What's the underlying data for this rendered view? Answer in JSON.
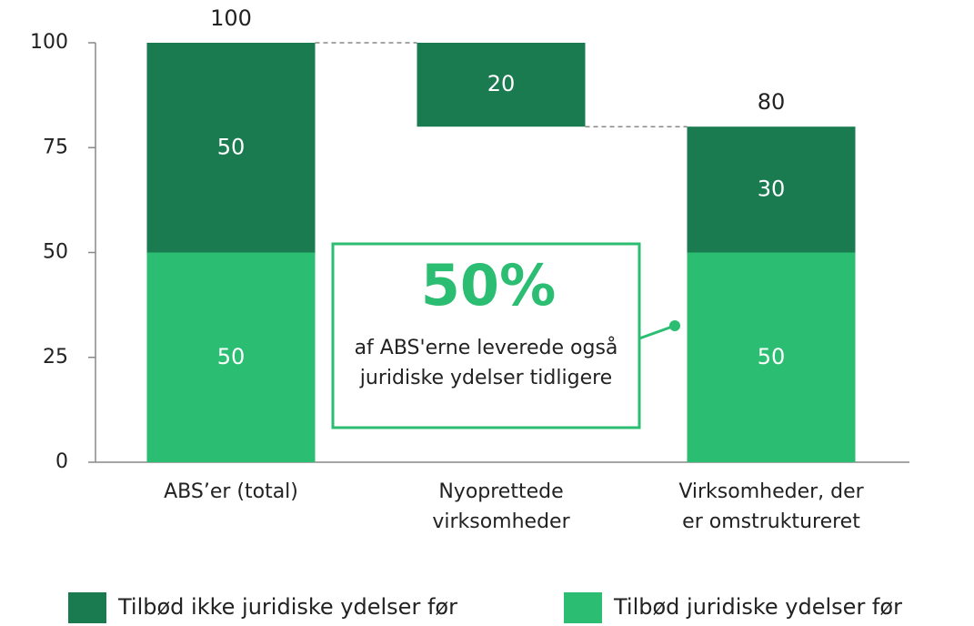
{
  "chart_data": {
    "type": "waterfall",
    "categories": [
      "ABS’er (total)",
      "Nyoprettede virksomheder",
      "Virksomheder, der er omstruktureret"
    ],
    "series": [
      {
        "name": "Tilbød ikke juridiske ydelser før",
        "color": "#1a7a50",
        "values": [
          50,
          20,
          30
        ]
      },
      {
        "name": "Tilbød juridiske ydelser før",
        "color": "#2bbd72",
        "values": [
          50,
          null,
          50
        ]
      }
    ],
    "totals": [
      100,
      null,
      80
    ],
    "ylim": [
      0,
      100
    ],
    "yticks": [
      0,
      25,
      50,
      75,
      100
    ],
    "annotation": {
      "headline": "50%",
      "text": "af ABS'erne leverede også juridiske ydelser tidligere"
    },
    "legend": "bottom"
  }
}
